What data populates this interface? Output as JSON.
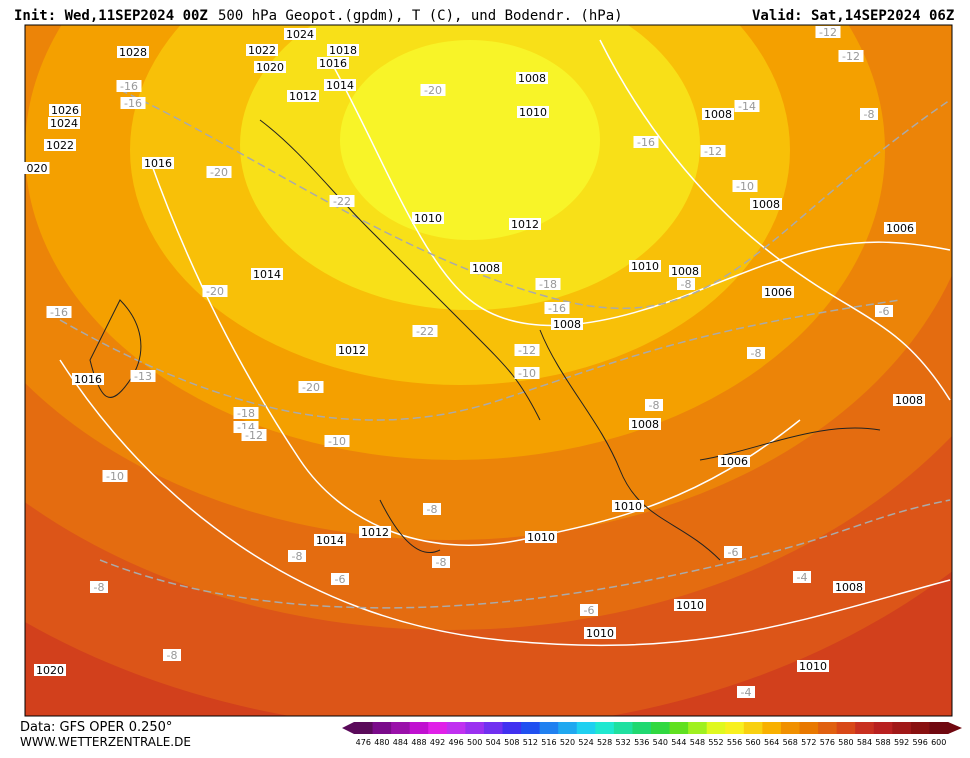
{
  "header": {
    "init": "Init: Wed,11SEP2024 00Z",
    "title": "500 hPa Geopot.(gpdm), T (C), und Bodendr. (hPa)",
    "valid": "Valid: Sat,14SEP2024 06Z"
  },
  "footer": {
    "source": "Data: GFS OPER 0.250°",
    "site": "WWW.WETTERZENTRALE.DE"
  },
  "colorbar": {
    "labels": [
      "476",
      "480",
      "484",
      "488",
      "492",
      "496",
      "500",
      "504",
      "508",
      "512",
      "516",
      "520",
      "524",
      "528",
      "532",
      "536",
      "540",
      "544",
      "548",
      "552",
      "556",
      "560",
      "564",
      "568",
      "572",
      "576",
      "580",
      "584",
      "588",
      "592",
      "596",
      "600"
    ],
    "colors": [
      "#5a0a5a",
      "#7a0a8a",
      "#9a10aa",
      "#c010d0",
      "#e020e8",
      "#c030f0",
      "#9a30f0",
      "#7030f0",
      "#4030f0",
      "#2050f0",
      "#2080f0",
      "#20a8f0",
      "#20d0f0",
      "#20e8d0",
      "#20e0a0",
      "#20d870",
      "#30d840",
      "#60e020",
      "#a0f020",
      "#e0f820",
      "#f8f020",
      "#f8d010",
      "#f8b000",
      "#f09000",
      "#e87800",
      "#e06010",
      "#d84818",
      "#c83020",
      "#b82020",
      "#a01818",
      "#881010",
      "#700810"
    ]
  },
  "map": {
    "pressure_labels": [
      "1028",
      "1022",
      "1020",
      "1024",
      "1018",
      "1016",
      "1014",
      "1012",
      "1026",
      "1024",
      "1022",
      "020",
      "1016",
      "1008",
      "1010",
      "1008",
      "1010",
      "1012",
      "1008",
      "1010",
      "1008",
      "1006",
      "1008",
      "1006",
      "1014",
      "1008",
      "1012",
      "1016",
      "1008",
      "1008",
      "1006",
      "1010",
      "1010",
      "1012",
      "1014",
      "1008",
      "1010",
      "1010",
      "1010",
      "1020"
    ],
    "temperature_labels": [
      "-12",
      "-12",
      "-8",
      "-14",
      "-16",
      "-12",
      "-10",
      "-20",
      "-16",
      "-16",
      "-20",
      "-22",
      "-18",
      "-16",
      "-8",
      "-20",
      "-16",
      "-22",
      "-12",
      "-10",
      "-6",
      "-8",
      "-13",
      "-20",
      "-18",
      "-14",
      "-12",
      "-10",
      "-8",
      "-10",
      "-8",
      "-8",
      "-8",
      "-6",
      "-6",
      "-4",
      "-6",
      "-8",
      "-8",
      "-4"
    ]
  }
}
